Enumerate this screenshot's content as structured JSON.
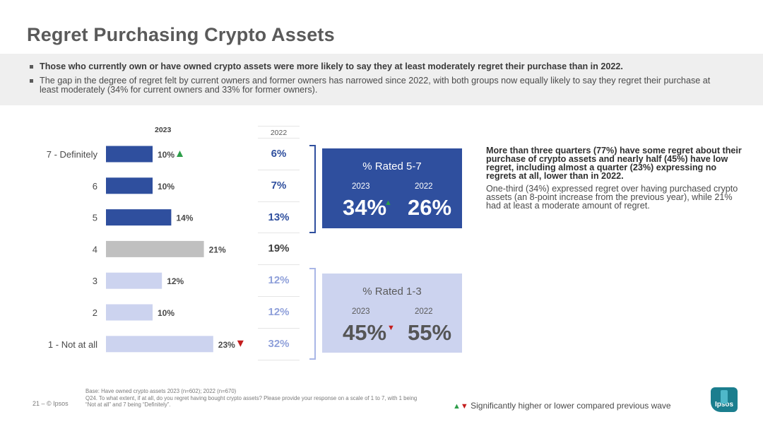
{
  "title": "Regret Purchasing Crypto Assets",
  "bullets": [
    "Those who currently own or have owned crypto assets were more likely to say they at least moderately regret their purchase than in 2022.",
    "The gap in the degree of regret felt by current owners and former owners has narrowed since 2022, with both groups now equally likely to say they regret their purchase at least moderately (34% for current owners and 33% for former owners)."
  ],
  "chart_data": {
    "type": "bar",
    "orientation": "horizontal",
    "header_2023": "2023",
    "header_2022": "2022",
    "categories": [
      "7 - Definitely",
      "6",
      "5",
      "4",
      "3",
      "2",
      "1 - Not at all"
    ],
    "values_2023": [
      10,
      10,
      14,
      21,
      12,
      10,
      23
    ],
    "labels_2023": [
      "10%",
      "10%",
      "14%",
      "21%",
      "12%",
      "10%",
      "23%"
    ],
    "values_2022": [
      6,
      7,
      13,
      19,
      12,
      12,
      32
    ],
    "labels_2022": [
      "6%",
      "7%",
      "13%",
      "19%",
      "12%",
      "12%",
      "32%"
    ],
    "significance_2023": [
      "up",
      "",
      "",
      "",
      "",
      "",
      "down"
    ],
    "bar_colors": [
      "#2f4f9e",
      "#2f4f9e",
      "#2f4f9e",
      "#c0c0c0",
      "#ccd3ef",
      "#ccd3ef",
      "#ccd3ef"
    ],
    "value_colors_2022": [
      "#2f4f9e",
      "#2f4f9e",
      "#2f4f9e",
      "#404040",
      "#8fa0da",
      "#8fa0da",
      "#8fa0da"
    ]
  },
  "rated_high": {
    "label": "% Rated 5-7",
    "year_a": "2023",
    "year_b": "2022",
    "value_a": "34%",
    "value_b": "26%",
    "marker": "▲"
  },
  "rated_low": {
    "label": "% Rated 1-3",
    "year_a": "2023",
    "year_b": "2022",
    "value_a": "45%",
    "value_b": "55%",
    "marker": "▼"
  },
  "commentary": {
    "bold": "More than three quarters (77%) have some regret about their purchase of crypto assets and nearly half (45%) have low regret, including almost a quarter (23%) expressing no regrets at all, lower than in 2022.",
    "plain": "One-third (34%) expressed regret over having purchased crypto assets (an 8-point increase from the previous year), while 21% had at least a moderate amount of regret."
  },
  "footer": {
    "page": "21 ‒   © Ipsos",
    "base": "Base: Have owned crypto assets 2023 (n=602); 2022 (n=670)",
    "question": "Q24. To what extent, if at all, do you regret having bought crypto assets? Please provide your response on a scale of 1 to 7, with 1 being “Not at all” and 7 being “Definitely”.",
    "legend": "Significantly higher or lower compared previous wave",
    "logo": "Ipsos"
  },
  "colors": {
    "up": "#2e9e4a",
    "down": "#c41e1e",
    "dark_blue": "#2f4f9e",
    "light_blue": "#ccd3ef"
  }
}
